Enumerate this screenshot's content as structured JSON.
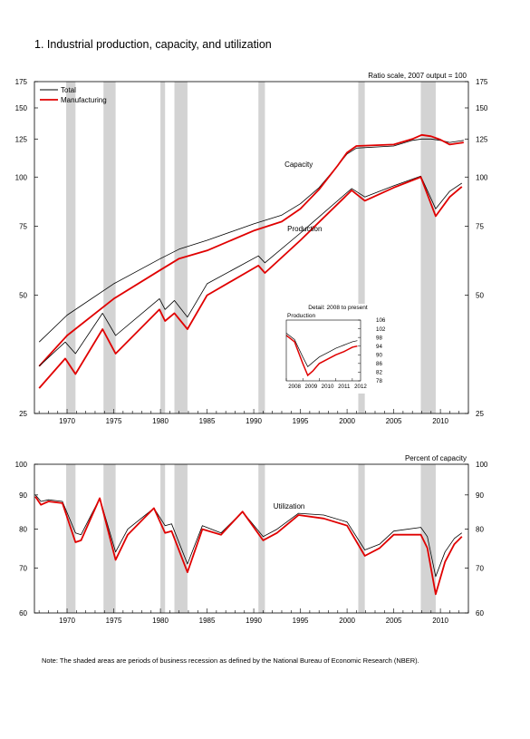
{
  "title": "1.  Industrial production, capacity, and utilization",
  "note": "Note: The shaded areas are periods of business recession as defined by the National Bureau of Economic Research (NBER).",
  "colors": {
    "total": "#000000",
    "manufacturing": "#e00000",
    "recession": "#d3d3d3"
  },
  "chart_data": [
    {
      "type": "line",
      "id": "production-capacity",
      "scale": "log",
      "unit_label": "Ratio scale, 2007 output = 100",
      "ylim": [
        25,
        175
      ],
      "yticks": [
        25,
        50,
        75,
        100,
        125,
        150,
        175
      ],
      "xlim": [
        1966.5,
        2013.0
      ],
      "xticks": [
        1970,
        1975,
        1980,
        1985,
        1990,
        1995,
        2000,
        2005,
        2010
      ],
      "grid": false,
      "legend_position": "top-left",
      "legend": [
        "Total",
        "Manufacturing"
      ],
      "recessions": [
        [
          1969.9,
          1970.9
        ],
        [
          1973.9,
          1975.2
        ],
        [
          1980.0,
          1980.5
        ],
        [
          1981.5,
          1982.9
        ],
        [
          1990.5,
          1991.2
        ],
        [
          2001.2,
          2001.9
        ],
        [
          2007.9,
          2009.5
        ]
      ],
      "annotations": [
        "Capacity",
        "Production"
      ],
      "series": [
        {
          "name": "Total",
          "group": "Capacity",
          "x": [
            1967,
            1970,
            1975,
            1980,
            1982,
            1985,
            1990,
            1993,
            1995,
            1997,
            1999,
            2000,
            2001,
            2005,
            2007,
            2008,
            2009,
            2010,
            2011,
            2012.5
          ],
          "values": [
            38,
            44.5,
            53.5,
            62,
            65.5,
            69,
            76,
            80,
            85.5,
            94,
            107,
            114.5,
            118.5,
            120,
            124,
            125,
            125,
            124,
            122.5,
            124
          ]
        },
        {
          "name": "Manufacturing",
          "group": "Capacity",
          "x": [
            1967,
            1970,
            1975,
            1980,
            1982,
            1985,
            1990,
            1993,
            1995,
            1997,
            1999,
            2000,
            2001,
            2005,
            2007,
            2008,
            2009,
            2010,
            2011,
            2012.5
          ],
          "values": [
            33,
            39.5,
            49,
            58,
            62,
            65,
            73,
            77,
            83,
            93,
            107,
            115.5,
            120,
            121,
            125,
            128,
            127,
            124.5,
            121,
            122.5
          ]
        },
        {
          "name": "Total",
          "group": "Production",
          "x": [
            1967,
            1969.8,
            1970.9,
            1973.8,
            1975.2,
            1979.9,
            1980.5,
            1981.5,
            1982.9,
            1985,
            1990.5,
            1991.2,
            1995,
            2000.5,
            2001.9,
            2005,
            2007.9,
            2009.5,
            2011,
            2012.3
          ],
          "values": [
            33,
            38,
            35.5,
            45,
            39.5,
            49,
            46,
            48.5,
            44,
            53.5,
            63,
            60.5,
            72,
            93.5,
            89,
            95,
            100.5,
            83,
            92,
            96.5
          ]
        },
        {
          "name": "Manufacturing",
          "group": "Production",
          "x": [
            1967,
            1969.8,
            1970.9,
            1973.8,
            1975.2,
            1979.9,
            1980.5,
            1981.5,
            1982.9,
            1985,
            1990.5,
            1991.2,
            1995,
            2000.5,
            2001.9,
            2005,
            2007.9,
            2009.5,
            2011,
            2012.3
          ],
          "values": [
            29,
            34.5,
            31.5,
            41,
            35.5,
            46,
            43,
            45,
            41,
            50,
            59.5,
            57,
            69,
            92.5,
            87,
            94,
            100,
            79.5,
            89,
            94.5
          ]
        }
      ],
      "inset": {
        "title": "Detail: 2008 to present",
        "ylabel": "Production",
        "xlim": [
          2008,
          2012.5
        ],
        "xticks": [
          2008,
          2009,
          2010,
          2011,
          2012
        ],
        "ylim": [
          78,
          106
        ],
        "yticks": [
          78,
          82,
          86,
          90,
          94,
          98,
          102,
          106
        ],
        "series": [
          {
            "name": "Total",
            "x": [
              2008,
              2008.5,
              2009,
              2009.3,
              2009.6,
              2010,
              2010.5,
              2011,
              2011.5,
              2012,
              2012.3
            ],
            "values": [
              100,
              97,
              89,
              84.5,
              86.5,
              89,
              91,
              93,
              94.5,
              96,
              96.5
            ]
          },
          {
            "name": "Manufacturing",
            "x": [
              2008,
              2008.5,
              2009,
              2009.3,
              2009.6,
              2010,
              2010.5,
              2011,
              2011.5,
              2012,
              2012.3
            ],
            "values": [
              99,
              96,
              86,
              80.5,
              82.5,
              86,
              88,
              90,
              91.5,
              93.5,
              94
            ]
          }
        ]
      }
    },
    {
      "type": "line",
      "id": "utilization",
      "scale": "log",
      "unit_label": "Percent of capacity",
      "ylim": [
        60,
        100
      ],
      "yticks": [
        60,
        70,
        80,
        90,
        100
      ],
      "xlim": [
        1966.5,
        2013.0
      ],
      "xticks": [
        1970,
        1975,
        1980,
        1985,
        1990,
        1995,
        2000,
        2005,
        2010
      ],
      "grid": false,
      "recessions": [
        [
          1969.9,
          1970.9
        ],
        [
          1973.9,
          1975.2
        ],
        [
          1980.0,
          1980.5
        ],
        [
          1981.5,
          1982.9
        ],
        [
          1990.5,
          1991.2
        ],
        [
          2001.2,
          2001.9
        ],
        [
          2007.9,
          2009.5
        ]
      ],
      "annotations": [
        "Utilization"
      ],
      "series": [
        {
          "name": "Total",
          "x": [
            1966.6,
            1967.2,
            1968,
            1969.5,
            1970.9,
            1971.5,
            1973.5,
            1975.2,
            1976.5,
            1979.3,
            1980.5,
            1981.2,
            1982.9,
            1984.5,
            1986.5,
            1988.8,
            1991.0,
            1992.5,
            1994.8,
            1997.5,
            2000,
            2001.9,
            2003.5,
            2005,
            2007.9,
            2008.6,
            2009.5,
            2010.5,
            2011.5,
            2012.3
          ],
          "values": [
            90,
            88,
            88.5,
            88,
            79,
            78.5,
            89,
            74,
            80,
            86,
            81,
            81.5,
            71,
            81,
            79,
            85,
            78,
            80,
            84.5,
            84,
            82,
            74.5,
            76,
            79.5,
            80.5,
            78,
            68,
            74,
            77.5,
            79
          ]
        },
        {
          "name": "Manufacturing",
          "x": [
            1966.6,
            1967.2,
            1968,
            1969.5,
            1970.9,
            1971.5,
            1973.5,
            1975.2,
            1976.5,
            1979.3,
            1980.5,
            1981.2,
            1982.9,
            1984.5,
            1986.5,
            1988.8,
            1991.0,
            1992.5,
            1994.8,
            1997.5,
            2000,
            2001.9,
            2003.5,
            2005,
            2007.9,
            2008.6,
            2009.5,
            2010.5,
            2011.5,
            2012.3
          ],
          "values": [
            89.5,
            87,
            88,
            87.5,
            76.5,
            77,
            89,
            72,
            78.5,
            86,
            79,
            79.5,
            69,
            80,
            78.5,
            85,
            77,
            79,
            84,
            83,
            81,
            73,
            75,
            78.5,
            78.5,
            75,
            64,
            71.5,
            76,
            78
          ]
        }
      ]
    }
  ]
}
